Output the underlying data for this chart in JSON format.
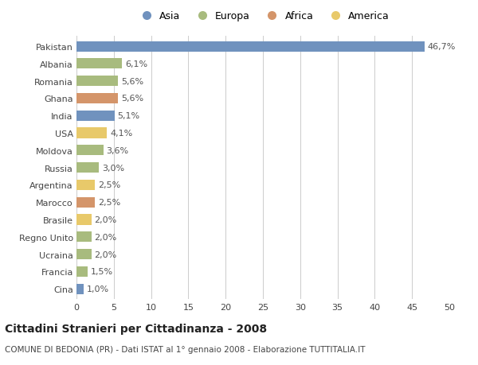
{
  "countries": [
    "Pakistan",
    "Albania",
    "Romania",
    "Ghana",
    "India",
    "USA",
    "Moldova",
    "Russia",
    "Argentina",
    "Marocco",
    "Brasile",
    "Regno Unito",
    "Ucraina",
    "Francia",
    "Cina"
  ],
  "values": [
    46.7,
    6.1,
    5.6,
    5.6,
    5.1,
    4.1,
    3.6,
    3.0,
    2.5,
    2.5,
    2.0,
    2.0,
    2.0,
    1.5,
    1.0
  ],
  "labels": [
    "46,7%",
    "6,1%",
    "5,6%",
    "5,6%",
    "5,1%",
    "4,1%",
    "3,6%",
    "3,0%",
    "2,5%",
    "2,5%",
    "2,0%",
    "2,0%",
    "2,0%",
    "1,5%",
    "1,0%"
  ],
  "colors": [
    "#7092be",
    "#a8bb7e",
    "#a8bb7e",
    "#d4956a",
    "#7092be",
    "#e8c96a",
    "#a8bb7e",
    "#a8bb7e",
    "#e8c96a",
    "#d4956a",
    "#e8c96a",
    "#a8bb7e",
    "#a8bb7e",
    "#a8bb7e",
    "#7092be"
  ],
  "legend_labels": [
    "Asia",
    "Europa",
    "Africa",
    "America"
  ],
  "legend_colors": [
    "#7092be",
    "#a8bb7e",
    "#d4956a",
    "#e8c96a"
  ],
  "title": "Cittadini Stranieri per Cittadinanza - 2008",
  "subtitle": "COMUNE DI BEDONIA (PR) - Dati ISTAT al 1° gennaio 2008 - Elaborazione TUTTITALIA.IT",
  "xlim": [
    0,
    50
  ],
  "xticks": [
    0,
    5,
    10,
    15,
    20,
    25,
    30,
    35,
    40,
    45,
    50
  ],
  "background_color": "#ffffff",
  "grid_color": "#cccccc",
  "bar_height": 0.6,
  "label_fontsize": 8,
  "tick_fontsize": 8,
  "title_fontsize": 10,
  "subtitle_fontsize": 7.5
}
